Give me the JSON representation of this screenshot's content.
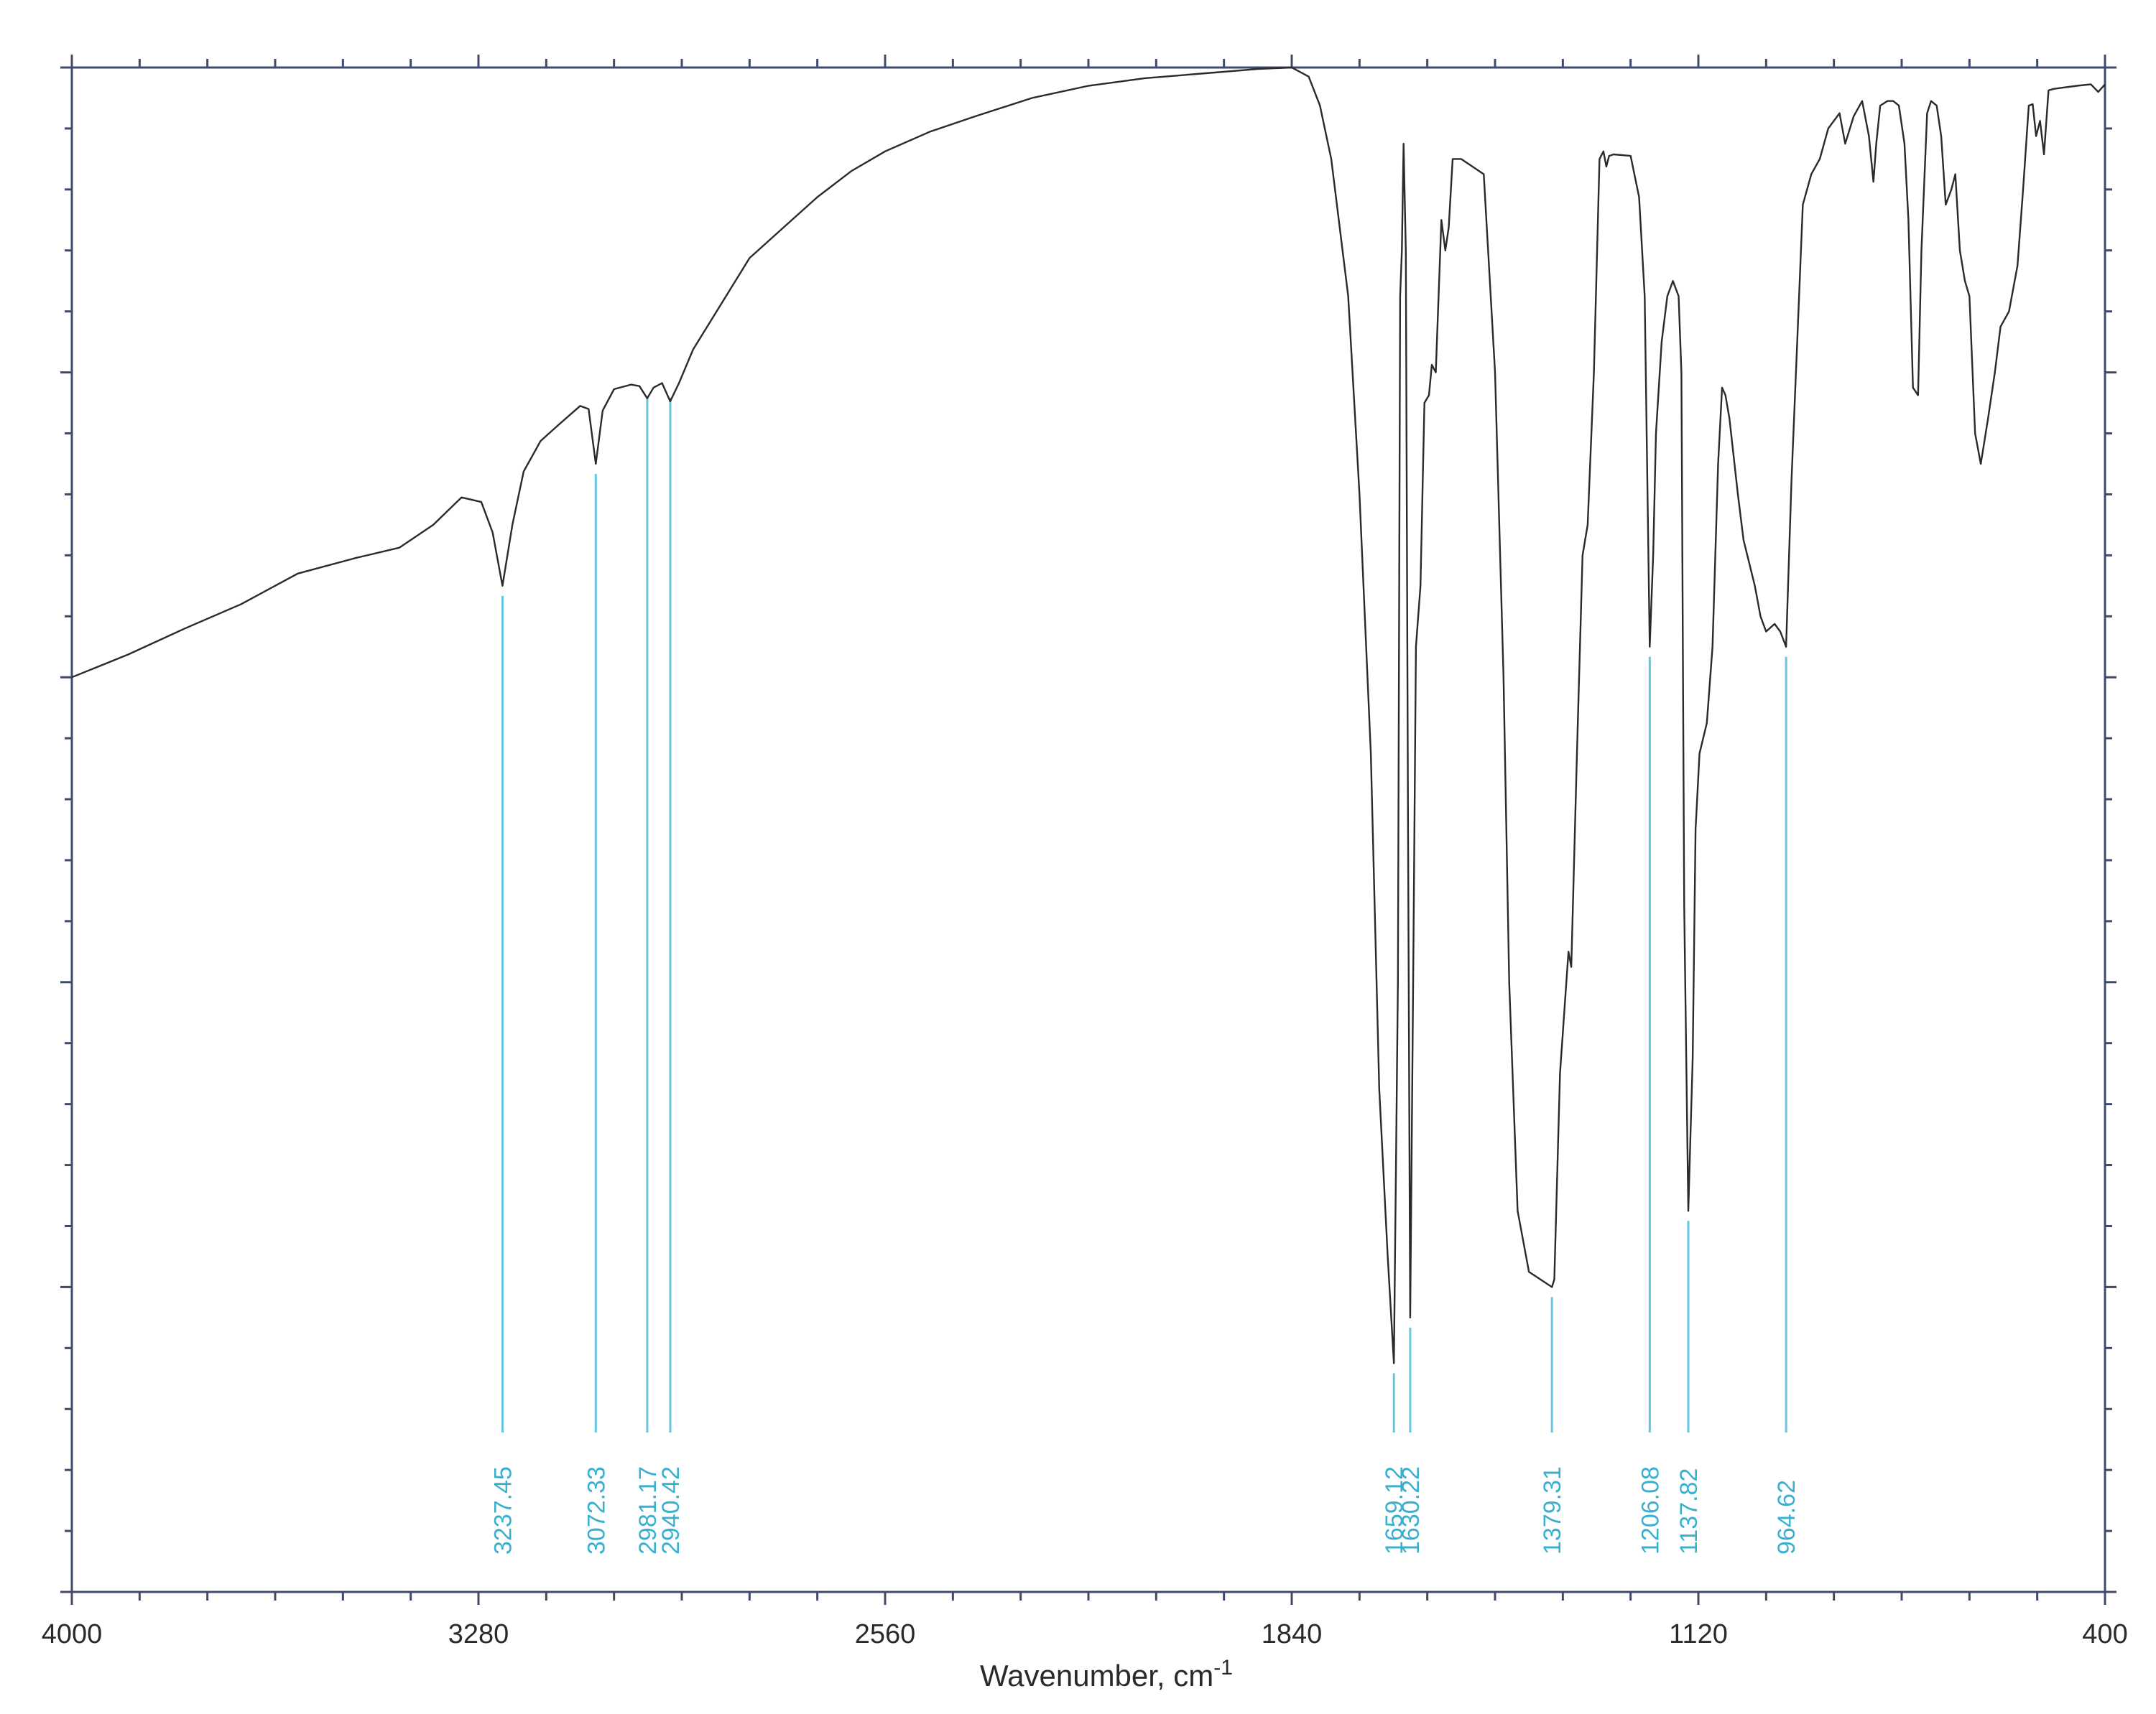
{
  "chart_data": {
    "type": "line",
    "title": "",
    "xlabel": "Wavenumber, cm",
    "xlabel_superscript": "-1",
    "ylabel": "",
    "xlim": [
      4000,
      400
    ],
    "ylim": [
      0,
      100
    ],
    "x_reversed": true,
    "grid": false,
    "x_ticks": [
      "4000",
      "3280",
      "2560",
      "1840",
      "1120",
      "400"
    ],
    "x_tick_values": [
      4000,
      3280,
      2560,
      1840,
      1120,
      400
    ],
    "peak_labels": [
      {
        "label": "3237.45",
        "x": 3237.45,
        "y": 66
      },
      {
        "label": "3072.33",
        "x": 3072.33,
        "y": 74
      },
      {
        "label": "2981.17",
        "x": 2981.17,
        "y": 79
      },
      {
        "label": "2940.42",
        "x": 2940.42,
        "y": 79
      },
      {
        "label": "1659.12",
        "x": 1659.12,
        "y": 15
      },
      {
        "label": "1630.22",
        "x": 1630.22,
        "y": 18
      },
      {
        "label": "1379.31",
        "x": 1379.31,
        "y": 20
      },
      {
        "label": "1206.08",
        "x": 1206.08,
        "y": 62
      },
      {
        "label": "1137.82",
        "x": 1137.82,
        "y": 25
      },
      {
        "label": "964.62",
        "x": 964.62,
        "y": 62
      }
    ],
    "series": [
      {
        "color": "#2a2a2a",
        "points": [
          [
            4000,
            60
          ],
          [
            3900,
            61.5
          ],
          [
            3800,
            63.2
          ],
          [
            3700,
            64.8
          ],
          [
            3600,
            66.8
          ],
          [
            3500,
            67.8
          ],
          [
            3420,
            68.5
          ],
          [
            3360,
            70
          ],
          [
            3310,
            71.8
          ],
          [
            3275,
            71.5
          ],
          [
            3255,
            69.5
          ],
          [
            3237.45,
            66
          ],
          [
            3220,
            70
          ],
          [
            3200,
            73.5
          ],
          [
            3170,
            75.5
          ],
          [
            3140,
            76.5
          ],
          [
            3100,
            77.8
          ],
          [
            3085,
            77.6
          ],
          [
            3072.33,
            74
          ],
          [
            3060,
            77.5
          ],
          [
            3040,
            78.9
          ],
          [
            3010,
            79.2
          ],
          [
            2995,
            79.1
          ],
          [
            2981.17,
            78.3
          ],
          [
            2970,
            79.0
          ],
          [
            2955,
            79.3
          ],
          [
            2940.42,
            78.1
          ],
          [
            2925,
            79.3
          ],
          [
            2900,
            81.5
          ],
          [
            2850,
            84.5
          ],
          [
            2800,
            87.5
          ],
          [
            2740,
            89.5
          ],
          [
            2680,
            91.5
          ],
          [
            2620,
            93.2
          ],
          [
            2560,
            94.5
          ],
          [
            2480,
            95.8
          ],
          [
            2400,
            96.8
          ],
          [
            2300,
            98
          ],
          [
            2200,
            98.8
          ],
          [
            2100,
            99.3
          ],
          [
            2000,
            99.6
          ],
          [
            1900,
            99.9
          ],
          [
            1840,
            100
          ],
          [
            1810,
            99.4
          ],
          [
            1790,
            97.5
          ],
          [
            1770,
            94
          ],
          [
            1740,
            85
          ],
          [
            1720,
            72
          ],
          [
            1700,
            55
          ],
          [
            1685,
            33
          ],
          [
            1670,
            22
          ],
          [
            1659.12,
            15
          ],
          [
            1652,
            40
          ],
          [
            1648,
            85
          ],
          [
            1645,
            88
          ],
          [
            1642,
            95
          ],
          [
            1638,
            88
          ],
          [
            1634,
            50
          ],
          [
            1630.22,
            18
          ],
          [
            1625,
            40
          ],
          [
            1620,
            62
          ],
          [
            1612,
            66
          ],
          [
            1605,
            78
          ],
          [
            1597,
            78.5
          ],
          [
            1592,
            80.5
          ],
          [
            1585,
            80
          ],
          [
            1575,
            90
          ],
          [
            1568,
            88
          ],
          [
            1562,
            89.5
          ],
          [
            1555,
            94
          ],
          [
            1540,
            94
          ],
          [
            1520,
            93.5
          ],
          [
            1500,
            93
          ],
          [
            1480,
            80
          ],
          [
            1465,
            60
          ],
          [
            1455,
            40
          ],
          [
            1440,
            25
          ],
          [
            1420,
            21
          ],
          [
            1379.31,
            20
          ],
          [
            1375,
            20.5
          ],
          [
            1365,
            34
          ],
          [
            1350,
            42
          ],
          [
            1345,
            41
          ],
          [
            1335,
            55
          ],
          [
            1325,
            68
          ],
          [
            1316,
            70
          ],
          [
            1305,
            80
          ],
          [
            1295,
            94
          ],
          [
            1288,
            94.5
          ],
          [
            1283,
            93.5
          ],
          [
            1278,
            94.2
          ],
          [
            1270,
            94.3
          ],
          [
            1240,
            94.2
          ],
          [
            1225,
            91.5
          ],
          [
            1215,
            85
          ],
          [
            1206.08,
            62
          ],
          [
            1200,
            68
          ],
          [
            1195,
            76
          ],
          [
            1185,
            82
          ],
          [
            1175,
            85
          ],
          [
            1165,
            86
          ],
          [
            1155,
            85
          ],
          [
            1150,
            80
          ],
          [
            1145,
            45
          ],
          [
            1137.82,
            25
          ],
          [
            1130,
            35
          ],
          [
            1125,
            50
          ],
          [
            1118,
            55
          ],
          [
            1105,
            57
          ],
          [
            1095,
            62
          ],
          [
            1085,
            74
          ],
          [
            1078,
            79
          ],
          [
            1072,
            78.5
          ],
          [
            1065,
            77
          ],
          [
            1050,
            72
          ],
          [
            1040,
            69
          ],
          [
            1020,
            66
          ],
          [
            1010,
            64
          ],
          [
            1000,
            63
          ],
          [
            985,
            63.5
          ],
          [
            975,
            63
          ],
          [
            964.62,
            62
          ],
          [
            955,
            73
          ],
          [
            945,
            82
          ],
          [
            935,
            91
          ],
          [
            920,
            93
          ],
          [
            905,
            94
          ],
          [
            890,
            96
          ],
          [
            870,
            97
          ],
          [
            860,
            95
          ],
          [
            845,
            96.8
          ],
          [
            830,
            97.8
          ],
          [
            818,
            95.5
          ],
          [
            810,
            92.5
          ],
          [
            805,
            95
          ],
          [
            798,
            97.5
          ],
          [
            785,
            97.8
          ],
          [
            775,
            97.8
          ],
          [
            765,
            97.5
          ],
          [
            755,
            95
          ],
          [
            748,
            90
          ],
          [
            740,
            79
          ],
          [
            731,
            78.5
          ],
          [
            725,
            88
          ],
          [
            715,
            97
          ],
          [
            708,
            97.8
          ],
          [
            698,
            97.5
          ],
          [
            690,
            95.5
          ],
          [
            682,
            91
          ],
          [
            672,
            92
          ],
          [
            665,
            93
          ],
          [
            657,
            88
          ],
          [
            648,
            86
          ],
          [
            640,
            85
          ],
          [
            630,
            76
          ],
          [
            620,
            74
          ],
          [
            607,
            77
          ],
          [
            595,
            80
          ],
          [
            585,
            83
          ],
          [
            570,
            84
          ],
          [
            555,
            87
          ],
          [
            545,
            92
          ],
          [
            535,
            97.5
          ],
          [
            528,
            97.6
          ],
          [
            522,
            95.5
          ],
          [
            515,
            96.5
          ],
          [
            508,
            94.3
          ],
          [
            500,
            98.5
          ],
          [
            490,
            98.6
          ],
          [
            470,
            98.7
          ],
          [
            450,
            98.8
          ],
          [
            425,
            98.9
          ],
          [
            412,
            98.4
          ],
          [
            400,
            98.9
          ]
        ]
      }
    ]
  }
}
